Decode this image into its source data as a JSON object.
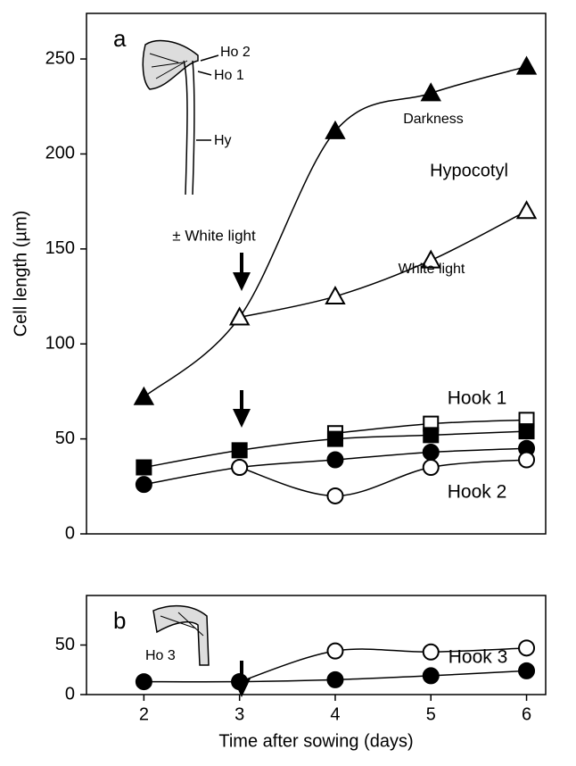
{
  "chart_data": [
    {
      "type": "line",
      "panel_label": "a",
      "ylabel": "Cell length (µm)",
      "x": [
        2,
        3,
        4,
        5,
        6
      ],
      "xlim": [
        1.4,
        6.2
      ],
      "ylim": [
        0,
        274
      ],
      "yticks": [
        0,
        50,
        100,
        150,
        200,
        250
      ],
      "series": [
        {
          "color": "#000000",
          "marker": "triangle",
          "fill": "filled",
          "values": [
            72,
            114,
            212,
            232,
            246
          ]
        },
        {
          "color": "#000000",
          "marker": "triangle",
          "fill": "open",
          "values": [
            null,
            114,
            125,
            144,
            170
          ]
        },
        {
          "color": "#000000",
          "marker": "square",
          "fill": "half",
          "values": [
            null,
            null,
            53,
            58,
            60
          ]
        },
        {
          "color": "#000000",
          "marker": "square",
          "fill": "filled",
          "values": [
            35,
            44,
            50,
            52,
            54
          ]
        },
        {
          "color": "#000000",
          "marker": "circle",
          "fill": "filled",
          "values": [
            26,
            35,
            39,
            43,
            45
          ]
        },
        {
          "color": "#000000",
          "marker": "circle",
          "fill": "open",
          "values": [
            null,
            35,
            20,
            35,
            39
          ]
        }
      ],
      "annotations": [
        "Darkness",
        "White light",
        "Hypocotyl",
        "Hook 1",
        "Hook 2",
        "± White light",
        "Ho 2",
        "Ho 1",
        "Hy"
      ]
    },
    {
      "type": "line",
      "panel_label": "b",
      "xlabel": "Time after sowing (days)",
      "x": [
        2,
        3,
        4,
        5,
        6
      ],
      "xlim": [
        1.4,
        6.2
      ],
      "xticks": [
        2,
        3,
        4,
        5,
        6
      ],
      "ylim": [
        0,
        100
      ],
      "yticks": [
        0,
        50
      ],
      "series": [
        {
          "color": "#000000",
          "marker": "circle",
          "fill": "open",
          "values": [
            null,
            13,
            44,
            43,
            47
          ]
        },
        {
          "color": "#000000",
          "marker": "circle",
          "fill": "filled",
          "values": [
            13,
            13,
            15,
            19,
            24
          ]
        }
      ],
      "annotations": [
        "Hook 3",
        "Ho 3"
      ]
    }
  ]
}
